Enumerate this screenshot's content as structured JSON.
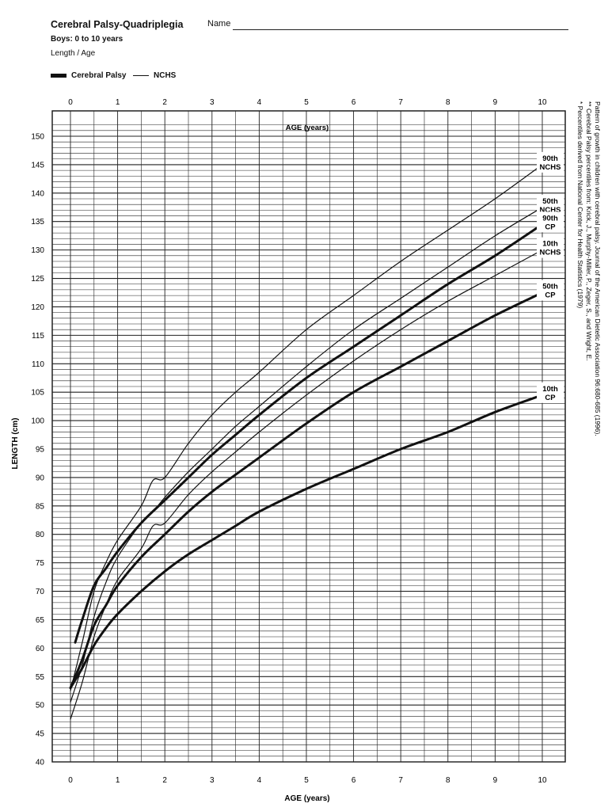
{
  "header": {
    "title": "Cerebral Palsy-Quadriplegia",
    "subtitle": "Boys: 0 to 10 years",
    "measure": "Length / Age",
    "name_label": "Name"
  },
  "legend": {
    "cp_label": "Cerebral Palsy",
    "nchs_label": "NCHS"
  },
  "footnotes": [
    "* Percentiles derived from National Center for Health Statistics (1979)",
    "** Cerebral Palsy percentiles from: Krick, J., Murphy-Miller, P., Zeger, S., and Wright, E.",
    "Pattern of growth in children with cerebral palsy. Journal of the American Dietetic Association 96:680-685 (1996)."
  ],
  "chart_data": {
    "type": "line",
    "title": "Cerebral Palsy-Quadriplegia",
    "subtitle": "Boys: 0 to 10 years",
    "xlabel": "AGE (years)",
    "ylabel": "LENGTH (cm)",
    "xlim": [
      0,
      10
    ],
    "ylim": [
      40,
      152
    ],
    "x_ticks": [
      0,
      1,
      2,
      3,
      4,
      5,
      6,
      7,
      8,
      9,
      10
    ],
    "y_ticks": [
      40,
      45,
      50,
      55,
      60,
      65,
      70,
      75,
      80,
      85,
      90,
      95,
      100,
      105,
      110,
      115,
      120,
      125,
      130,
      135,
      140,
      145,
      150
    ],
    "grid": true,
    "legend_position": "top-left",
    "series": [
      {
        "name": "90th NCHS",
        "group": "NCHS",
        "label_lines": [
          "90th",
          "NCHS"
        ],
        "points": [
          [
            0,
            52.5
          ],
          [
            0.25,
            61
          ],
          [
            0.5,
            70
          ],
          [
            0.75,
            75
          ],
          [
            1,
            79
          ],
          [
            1.5,
            85
          ],
          [
            1.75,
            89.5
          ],
          [
            2,
            90
          ],
          [
            2.5,
            96
          ],
          [
            3,
            101
          ],
          [
            3.5,
            105
          ],
          [
            4,
            108.5
          ],
          [
            5,
            116
          ],
          [
            6,
            122
          ],
          [
            7,
            128
          ],
          [
            8,
            133.5
          ],
          [
            9,
            139
          ],
          [
            10,
            145
          ]
        ]
      },
      {
        "name": "50th NCHS",
        "group": "NCHS",
        "label_lines": [
          "50th",
          "NCHS"
        ],
        "points": [
          [
            0,
            50.5
          ],
          [
            0.25,
            57
          ],
          [
            0.5,
            65.5
          ],
          [
            0.75,
            71.5
          ],
          [
            1,
            76
          ],
          [
            1.5,
            82
          ],
          [
            1.75,
            84
          ],
          [
            2,
            86.5
          ],
          [
            2.5,
            91
          ],
          [
            3,
            95
          ],
          [
            3.5,
            99
          ],
          [
            4,
            102.5
          ],
          [
            5,
            109.5
          ],
          [
            6,
            116
          ],
          [
            7,
            121.5
          ],
          [
            8,
            127
          ],
          [
            9,
            132.5
          ],
          [
            10,
            137.5
          ]
        ]
      },
      {
        "name": "90th CP",
        "group": "CP",
        "label_lines": [
          "90th",
          "CP"
        ],
        "points": [
          [
            0.1,
            61
          ],
          [
            0.25,
            65
          ],
          [
            0.5,
            71
          ],
          [
            0.75,
            74
          ],
          [
            1,
            77
          ],
          [
            1.5,
            82
          ],
          [
            2,
            86
          ],
          [
            2.5,
            90
          ],
          [
            3,
            94
          ],
          [
            3.5,
            97.5
          ],
          [
            4,
            101
          ],
          [
            5,
            107.5
          ],
          [
            6,
            113
          ],
          [
            7,
            118.5
          ],
          [
            8,
            124
          ],
          [
            9,
            129
          ],
          [
            10,
            134.5
          ]
        ]
      },
      {
        "name": "10th NCHS",
        "group": "NCHS",
        "label_lines": [
          "10th",
          "NCHS"
        ],
        "points": [
          [
            0,
            47.5
          ],
          [
            0.25,
            54
          ],
          [
            0.5,
            62
          ],
          [
            0.75,
            67.5
          ],
          [
            1,
            72
          ],
          [
            1.5,
            77.5
          ],
          [
            1.75,
            81.5
          ],
          [
            2,
            82
          ],
          [
            2.5,
            87
          ],
          [
            3,
            91
          ],
          [
            3.5,
            94.5
          ],
          [
            4,
            98
          ],
          [
            5,
            104.5
          ],
          [
            6,
            110.5
          ],
          [
            7,
            116
          ],
          [
            8,
            121
          ],
          [
            9,
            125.5
          ],
          [
            10,
            130
          ]
        ]
      },
      {
        "name": "50th CP",
        "group": "CP",
        "label_lines": [
          "50th",
          "CP"
        ],
        "points": [
          [
            0,
            53
          ],
          [
            0.25,
            58
          ],
          [
            0.5,
            64
          ],
          [
            0.75,
            67.5
          ],
          [
            1,
            71
          ],
          [
            1.5,
            76
          ],
          [
            2,
            80
          ],
          [
            2.5,
            84
          ],
          [
            3,
            87.5
          ],
          [
            3.5,
            90.5
          ],
          [
            4,
            93.5
          ],
          [
            5,
            99.5
          ],
          [
            6,
            105
          ],
          [
            7,
            109.5
          ],
          [
            8,
            114
          ],
          [
            9,
            118.5
          ],
          [
            10,
            122.5
          ]
        ]
      },
      {
        "name": "10th CP",
        "group": "CP",
        "label_lines": [
          "10th",
          "CP"
        ],
        "points": [
          [
            0,
            53
          ],
          [
            0.25,
            56.5
          ],
          [
            0.5,
            60.5
          ],
          [
            0.75,
            63.5
          ],
          [
            1,
            66
          ],
          [
            1.5,
            70
          ],
          [
            2,
            73.5
          ],
          [
            2.5,
            76.5
          ],
          [
            3,
            79
          ],
          [
            3.5,
            81.5
          ],
          [
            4,
            84
          ],
          [
            5,
            88
          ],
          [
            6,
            91.5
          ],
          [
            7,
            95
          ],
          [
            8,
            98
          ],
          [
            9,
            101.5
          ],
          [
            10,
            104.5
          ]
        ]
      }
    ]
  }
}
